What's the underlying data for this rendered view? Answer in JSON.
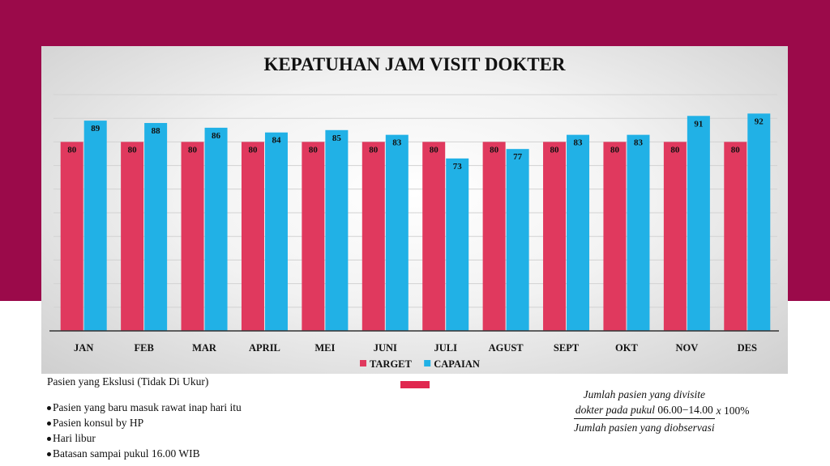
{
  "chart_data": {
    "type": "bar",
    "title": "KEPATUHAN JAM VISIT DOKTER",
    "categories": [
      "JAN",
      "FEB",
      "MAR",
      "APRIL",
      "MEI",
      "JUNI",
      "JULI",
      "AGUST",
      "SEPT",
      "OKT",
      "NOV",
      "DES"
    ],
    "series": [
      {
        "name": "TARGET",
        "color": "#e0395e",
        "values": [
          80,
          80,
          80,
          80,
          80,
          80,
          80,
          80,
          80,
          80,
          80,
          80
        ]
      },
      {
        "name": "CAPAIAN",
        "color": "#21b1e6",
        "values": [
          89,
          88,
          86,
          84,
          85,
          83,
          73,
          77,
          83,
          83,
          91,
          92
        ]
      }
    ],
    "xlabel": "",
    "ylabel": "",
    "ylim": [
      0,
      100
    ],
    "grid": true,
    "legend": "bottom"
  },
  "exclusion": {
    "heading": "Pasien yang Ekslusi (Tidak Di Ukur)",
    "items": [
      "Pasien yang baru masuk rawat inap hari itu",
      "Pasien konsul by HP",
      "Hari libur",
      "Batasan sampai pukul 16.00 WIB"
    ]
  },
  "formula": {
    "numerator_line1": "Jumlah pasien yang divisite",
    "numerator_line2": "dokter pada pukul",
    "numerator_time": "06.00−14.00",
    "denominator": "Jumlah pasien yang diobservasi",
    "multiplier_x": "x",
    "multiplier_value": "100%"
  }
}
